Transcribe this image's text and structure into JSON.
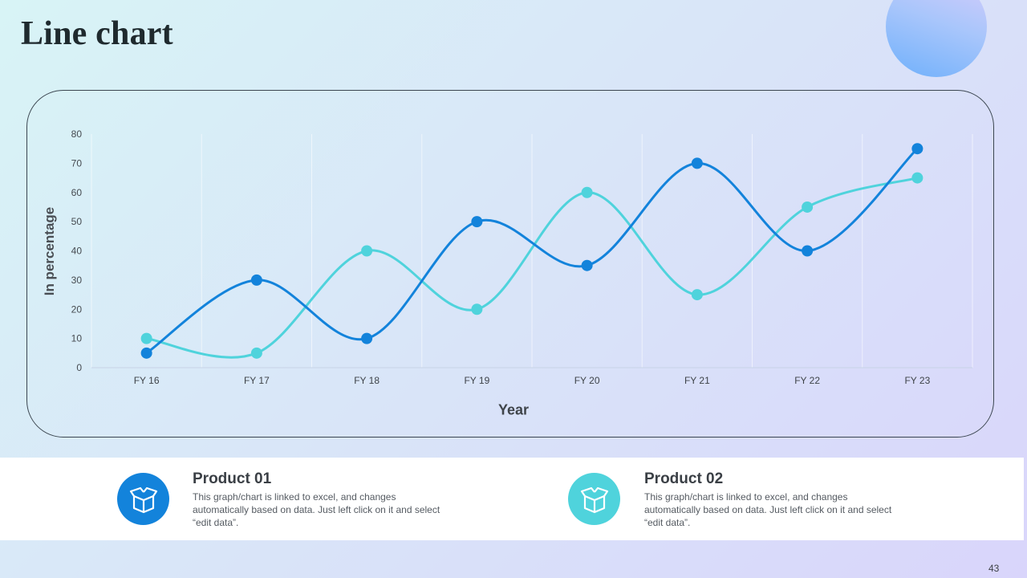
{
  "slide": {
    "title": "Line chart",
    "page_number": "43"
  },
  "colors": {
    "series1": "#1383db",
    "series2": "#4fd3dc"
  },
  "chart_data": {
    "type": "line",
    "smooth": true,
    "categories": [
      "FY 16",
      "FY 17",
      "FY 18",
      "FY 19",
      "FY 20",
      "FY 21",
      "FY 22",
      "FY 23"
    ],
    "series": [
      {
        "name": "Product 01",
        "values": [
          5,
          30,
          10,
          50,
          35,
          70,
          40,
          75
        ]
      },
      {
        "name": "Product 02",
        "values": [
          10,
          5,
          40,
          20,
          60,
          25,
          55,
          65
        ]
      }
    ],
    "ylim": [
      0,
      80
    ],
    "yticks": [
      0,
      10,
      20,
      30,
      40,
      50,
      60,
      70,
      80
    ],
    "xlabel": "Year",
    "ylabel": "In percentage",
    "grid": "vertical"
  },
  "products": [
    {
      "title": "Product 01",
      "description": "This graph/chart is linked to excel, and changes automatically based on data. Just left click on it and select “edit data”.",
      "icon": "box-icon"
    },
    {
      "title": "Product 02",
      "description": "This graph/chart is linked to excel, and changes automatically based on data. Just left click on it and select “edit data”.",
      "icon": "box-icon"
    }
  ]
}
